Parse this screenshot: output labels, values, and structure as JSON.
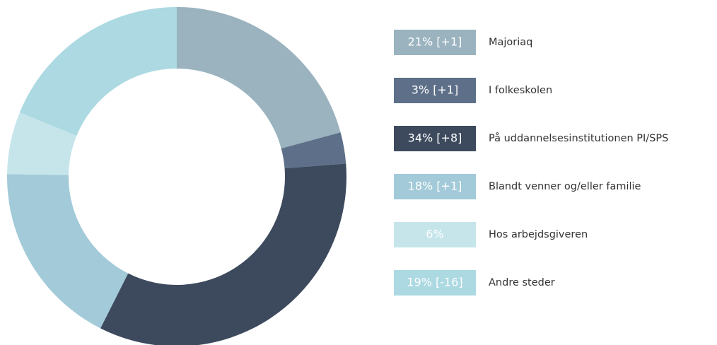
{
  "chart_data": {
    "type": "donut",
    "categories": [
      "Majoriaq",
      "I folkeskolen",
      "På uddannelsesinstitutionen PI/SPS",
      "Blandt venner og/eller familie",
      "Hos arbejdsgiveren",
      "Andre steder"
    ],
    "values": [
      21,
      3,
      34,
      18,
      6,
      19
    ],
    "value_labels": [
      "21% [+1]",
      "3% [+1]",
      "34% [+8]",
      "18% [+1]",
      "6%",
      "19% [-16]"
    ],
    "colors": [
      "#9ab3bf",
      "#5e7089",
      "#3d4a5e",
      "#a3cad8",
      "#c5e5ea",
      "#acd9e2"
    ],
    "legend": "right"
  }
}
